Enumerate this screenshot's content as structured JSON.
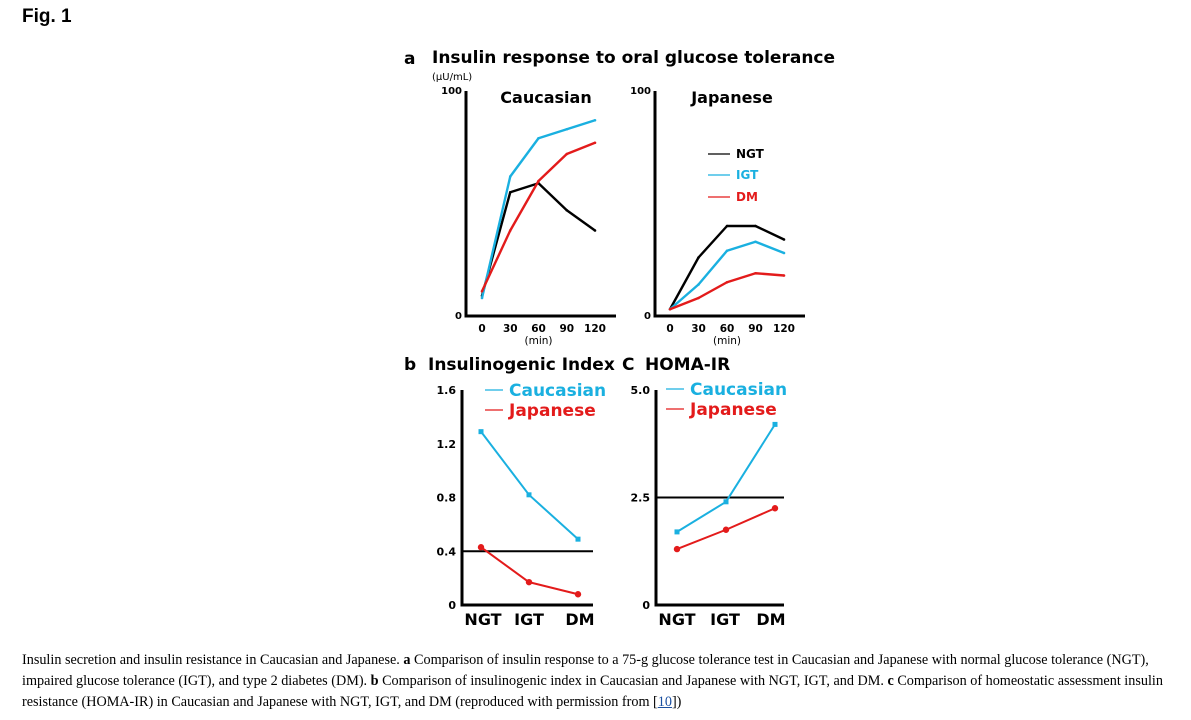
{
  "figure_label": "Fig. 1",
  "caption": {
    "t1": "Insulin secretion and insulin resistance in Caucasian and Japanese. ",
    "l1": "a",
    "t2": " Comparison of insulin response to a 75-g glucose tolerance test in Caucasian and Japanese with normal glucose tolerance (NGT), impaired glucose tolerance (IGT), and type 2 diabetes (DM). ",
    "l2": "b",
    "t3": " Comparison of insulinogenic index in Caucasian and Japanese with NGT, IGT, and DM. ",
    "l3": "c",
    "t4": " Comparison of homeostatic assessment insulin resistance (HOMA-IR) in Caucasian and Japanese with NGT, IGT, and DM (reproduced with permission from [",
    "ref": "10",
    "t5": "])"
  },
  "colors": {
    "NGT": "#000000",
    "IGT": "#1ab0e0",
    "DM": "#e31b1b",
    "Caucasian": "#1ab0e0",
    "Japanese": "#e31b1b"
  },
  "chart_data": [
    {
      "panel": "a",
      "type": "line",
      "title": "Insulin response to oral glucose tolerance",
      "subtitle": "Caucasian",
      "ylabel": "(μU/mL)",
      "xlabel": "(min)",
      "x": [
        0,
        30,
        60,
        90,
        120
      ],
      "xticks": [
        "0",
        "30",
        "60",
        "90",
        "120"
      ],
      "yticks": [
        "0",
        "100"
      ],
      "ylim": [
        0,
        100
      ],
      "series": [
        {
          "name": "NGT",
          "values": [
            9,
            55,
            59,
            47,
            38
          ]
        },
        {
          "name": "IGT",
          "values": [
            8,
            62,
            79,
            83,
            87
          ]
        },
        {
          "name": "DM",
          "values": [
            11,
            38,
            60,
            72,
            77
          ]
        }
      ]
    },
    {
      "panel": "a",
      "type": "line",
      "subtitle": "Japanese",
      "xlabel": "(min)",
      "x": [
        0,
        30,
        60,
        90,
        120
      ],
      "xticks": [
        "0",
        "30",
        "60",
        "90",
        "120"
      ],
      "yticks": [
        "0",
        "100"
      ],
      "ylim": [
        0,
        100
      ],
      "legend": [
        "NGT",
        "IGT",
        "DM"
      ],
      "series": [
        {
          "name": "NGT",
          "values": [
            3,
            26,
            40,
            40,
            34
          ]
        },
        {
          "name": "IGT",
          "values": [
            3,
            14,
            29,
            33,
            28
          ]
        },
        {
          "name": "DM",
          "values": [
            3,
            8,
            15,
            19,
            18
          ]
        }
      ]
    },
    {
      "panel": "b",
      "type": "line",
      "title": "Insulinogenic Index",
      "categories": [
        "NGT",
        "IGT",
        "DM"
      ],
      "yticks": [
        "0",
        "0.4",
        "0.8",
        "1.2",
        "1.6"
      ],
      "ylim": [
        0,
        1.6
      ],
      "reference_line": 0.4,
      "legend": [
        "Caucasian",
        "Japanese"
      ],
      "series": [
        {
          "name": "Caucasian",
          "values": [
            1.29,
            0.82,
            0.49
          ]
        },
        {
          "name": "Japanese",
          "values": [
            0.43,
            0.17,
            0.08
          ]
        }
      ]
    },
    {
      "panel": "C",
      "type": "line",
      "title": "HOMA-IR",
      "categories": [
        "NGT",
        "IGT",
        "DM"
      ],
      "yticks": [
        "0",
        "2.5",
        "5.0"
      ],
      "ylim": [
        0,
        5.0
      ],
      "reference_line": 2.5,
      "legend": [
        "Caucasian",
        "Japanese"
      ],
      "series": [
        {
          "name": "Caucasian",
          "values": [
            1.7,
            2.4,
            4.2
          ]
        },
        {
          "name": "Japanese",
          "values": [
            1.3,
            1.75,
            2.25
          ]
        }
      ]
    }
  ]
}
